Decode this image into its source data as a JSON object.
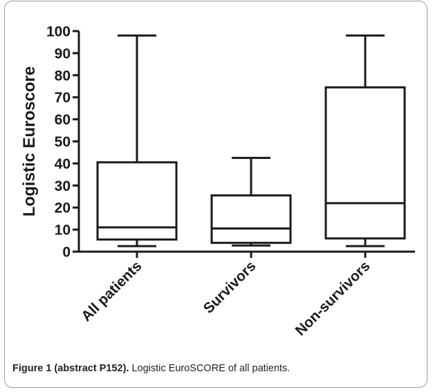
{
  "chart_data": {
    "type": "box",
    "ylabel": "Logistic Euroscore",
    "ylim": [
      0,
      100
    ],
    "yticks": [
      0,
      10,
      20,
      30,
      40,
      50,
      60,
      70,
      80,
      90,
      100
    ],
    "categories": [
      "All patients",
      "Survivors",
      "Non-survivors"
    ],
    "boxes": [
      {
        "category": "All patients",
        "min": 2.5,
        "q1": 5.5,
        "median": 11,
        "q3": 40.5,
        "max": 98
      },
      {
        "category": "Survivors",
        "min": 2.8,
        "q1": 4,
        "median": 10.5,
        "q3": 25.5,
        "max": 42.5
      },
      {
        "category": "Non-survivors",
        "min": 2.5,
        "q1": 6,
        "median": 22,
        "q3": 74.5,
        "max": 98
      }
    ],
    "grid": false,
    "legend": "none"
  },
  "caption": {
    "label": "Figure 1 (abstract P152).",
    "text": " Logistic EuroSCORE of all patients."
  },
  "colors": {
    "line": "#1a1a1a",
    "caption_text": "#231f20"
  }
}
